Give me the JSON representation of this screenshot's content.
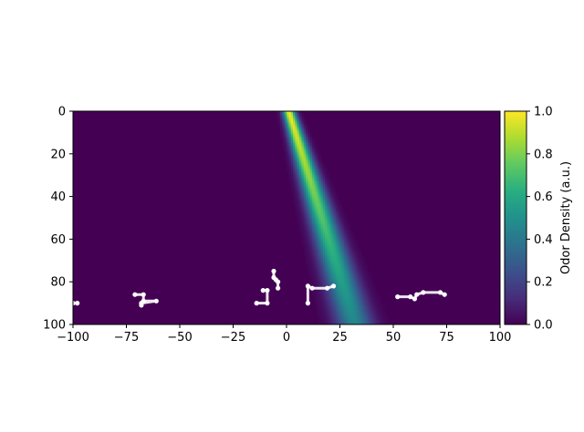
{
  "chart_data": {
    "type": "heatmap",
    "title": "",
    "xlabel": "",
    "ylabel": "",
    "xlim": [
      -100,
      100
    ],
    "ylim": [
      100,
      0
    ],
    "y_inverted": true,
    "x_ticks": [
      -100,
      -75,
      -50,
      -25,
      0,
      25,
      50,
      75,
      100
    ],
    "y_ticks": [
      0,
      20,
      40,
      60,
      80,
      100
    ],
    "x_tick_labels": [
      "−100",
      "−75",
      "−50",
      "−25",
      "0",
      "25",
      "50",
      "75",
      "100"
    ],
    "y_tick_labels": [
      "0",
      "20",
      "40",
      "60",
      "80",
      "100"
    ],
    "plume": {
      "center_x_at_y0": 1,
      "center_x_at_y100": 32,
      "peak_density": 1.0,
      "min_peak_density": 0.45,
      "width_at_y0": 2.0,
      "width_at_y100": 6.0
    },
    "colorbar": {
      "label": "Odor Density (a.u.)",
      "range": [
        0.0,
        1.0
      ],
      "ticks": [
        0.0,
        0.2,
        0.4,
        0.6,
        0.8,
        1.0
      ],
      "tick_labels": [
        "0.0",
        "0.2",
        "0.4",
        "0.6",
        "0.8",
        "1.0"
      ],
      "colormap": "viridis"
    },
    "trajectories": [
      {
        "points": [
          [
            -100,
            90
          ],
          [
            -98,
            90
          ]
        ]
      },
      {
        "points": [
          [
            -71,
            86
          ],
          [
            -67,
            86
          ],
          [
            -67,
            89
          ],
          [
            -61,
            89
          ],
          [
            -68,
            90
          ],
          [
            -68,
            91
          ]
        ]
      },
      {
        "points": [
          [
            -14,
            90
          ],
          [
            -9,
            90
          ],
          [
            -9,
            84
          ],
          [
            -11,
            84
          ]
        ]
      },
      {
        "points": [
          [
            -6,
            75
          ],
          [
            -6,
            78
          ],
          [
            -5,
            79
          ],
          [
            -4,
            80
          ],
          [
            -4,
            83
          ]
        ]
      },
      {
        "points": [
          [
            10,
            90
          ],
          [
            10,
            82
          ],
          [
            12,
            83
          ],
          [
            19,
            83
          ],
          [
            22,
            82
          ]
        ]
      },
      {
        "points": [
          [
            52,
            87
          ],
          [
            58,
            87
          ],
          [
            60,
            88
          ],
          [
            61,
            86
          ],
          [
            64,
            85
          ],
          [
            72,
            85
          ],
          [
            74,
            86
          ]
        ]
      }
    ],
    "trajectory_color": "#ffffff"
  }
}
